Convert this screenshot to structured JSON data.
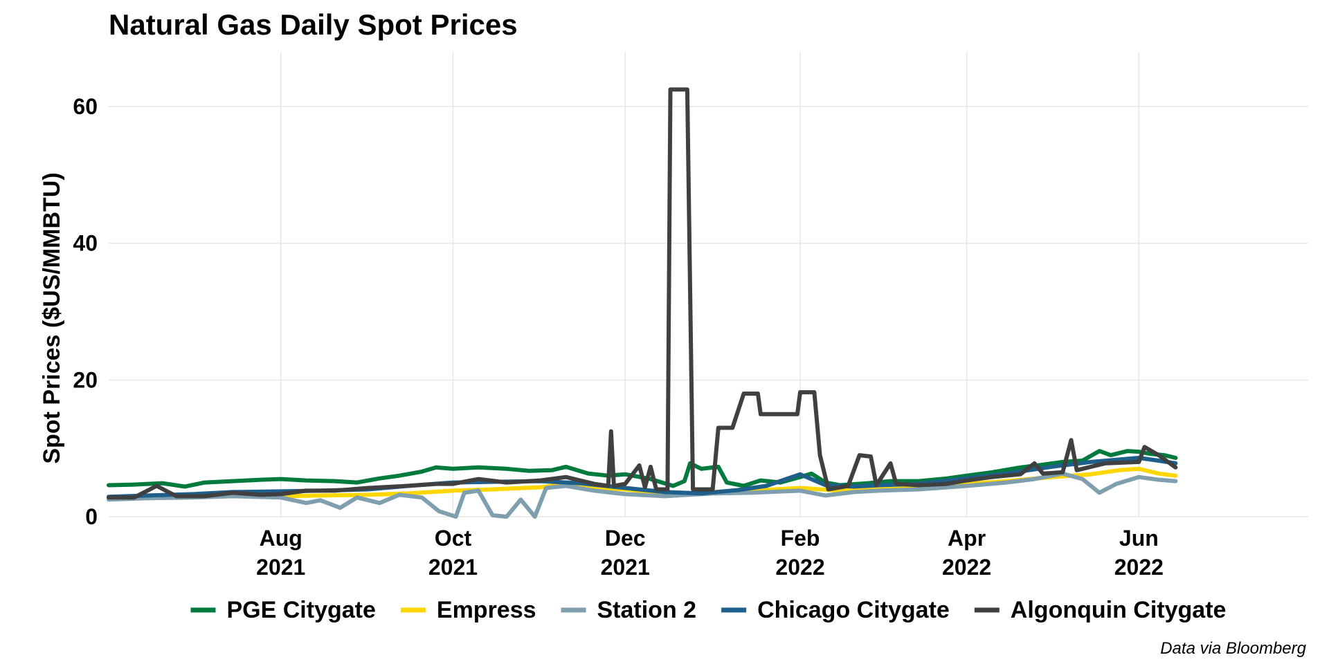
{
  "chart_data": {
    "type": "line",
    "title": "Natural Gas Daily Spot Prices",
    "ylabel": "Spot Prices ($US/MMBTU)",
    "xlabel": "",
    "caption": "Data via Bloomberg",
    "xlim": [
      "2021-06-01",
      "2022-07-31"
    ],
    "ylim": [
      0,
      68
    ],
    "yticks": [
      {
        "value": 0,
        "label": "0"
      },
      {
        "value": 20,
        "label": "20"
      },
      {
        "value": 40,
        "label": "40"
      },
      {
        "value": 60,
        "label": "60"
      }
    ],
    "xticks": [
      {
        "date": "2021-08-01",
        "month": "Aug",
        "year": "2021"
      },
      {
        "date": "2021-10-01",
        "month": "Oct",
        "year": "2021"
      },
      {
        "date": "2021-12-01",
        "month": "Dec",
        "year": "2021"
      },
      {
        "date": "2022-02-01",
        "month": "Feb",
        "year": "2022"
      },
      {
        "date": "2022-04-01",
        "month": "Apr",
        "year": "2022"
      },
      {
        "date": "2022-06-01",
        "month": "Jun",
        "year": "2022"
      }
    ],
    "grid": true,
    "legend_position": "bottom",
    "series": [
      {
        "name": "PGE Citygate",
        "color": "#007a3d",
        "points": [
          [
            "2021-06-01",
            4.6
          ],
          [
            "2021-06-10",
            4.7
          ],
          [
            "2021-06-20",
            4.9
          ],
          [
            "2021-06-28",
            4.4
          ],
          [
            "2021-07-05",
            5.0
          ],
          [
            "2021-07-15",
            5.2
          ],
          [
            "2021-07-25",
            5.4
          ],
          [
            "2021-08-01",
            5.5
          ],
          [
            "2021-08-10",
            5.3
          ],
          [
            "2021-08-20",
            5.2
          ],
          [
            "2021-08-28",
            5.0
          ],
          [
            "2021-09-05",
            5.6
          ],
          [
            "2021-09-12",
            6.0
          ],
          [
            "2021-09-20",
            6.6
          ],
          [
            "2021-09-25",
            7.2
          ],
          [
            "2021-10-01",
            7.0
          ],
          [
            "2021-10-10",
            7.2
          ],
          [
            "2021-10-20",
            7.0
          ],
          [
            "2021-10-28",
            6.7
          ],
          [
            "2021-11-05",
            6.8
          ],
          [
            "2021-11-10",
            7.3
          ],
          [
            "2021-11-18",
            6.3
          ],
          [
            "2021-11-25",
            6.0
          ],
          [
            "2021-12-01",
            6.2
          ],
          [
            "2021-12-10",
            5.5
          ],
          [
            "2021-12-18",
            4.5
          ],
          [
            "2021-12-22",
            5.2
          ],
          [
            "2021-12-24",
            7.8
          ],
          [
            "2021-12-28",
            7.0
          ],
          [
            "2022-01-03",
            7.3
          ],
          [
            "2022-01-06",
            5.0
          ],
          [
            "2022-01-12",
            4.5
          ],
          [
            "2022-01-18",
            5.3
          ],
          [
            "2022-01-25",
            5.0
          ],
          [
            "2022-02-01",
            5.8
          ],
          [
            "2022-02-05",
            6.3
          ],
          [
            "2022-02-10",
            5.0
          ],
          [
            "2022-02-15",
            4.6
          ],
          [
            "2022-02-25",
            4.9
          ],
          [
            "2022-03-05",
            5.2
          ],
          [
            "2022-03-15",
            5.2
          ],
          [
            "2022-03-25",
            5.6
          ],
          [
            "2022-04-01",
            6.0
          ],
          [
            "2022-04-10",
            6.5
          ],
          [
            "2022-04-20",
            7.2
          ],
          [
            "2022-04-28",
            7.6
          ],
          [
            "2022-05-05",
            8.0
          ],
          [
            "2022-05-12",
            8.2
          ],
          [
            "2022-05-18",
            9.6
          ],
          [
            "2022-05-22",
            9.0
          ],
          [
            "2022-05-28",
            9.6
          ],
          [
            "2022-06-01",
            9.5
          ],
          [
            "2022-06-05",
            9.2
          ],
          [
            "2022-06-10",
            9.0
          ],
          [
            "2022-06-14",
            8.6
          ]
        ]
      },
      {
        "name": "Empress",
        "color": "#ffd700",
        "points": [
          [
            "2021-06-01",
            2.6
          ],
          [
            "2021-06-15",
            2.7
          ],
          [
            "2021-07-01",
            2.9
          ],
          [
            "2021-07-15",
            3.0
          ],
          [
            "2021-08-01",
            3.0
          ],
          [
            "2021-08-15",
            3.1
          ],
          [
            "2021-09-01",
            3.2
          ],
          [
            "2021-09-15",
            3.4
          ],
          [
            "2021-10-01",
            3.8
          ],
          [
            "2021-10-15",
            4.0
          ],
          [
            "2021-11-01",
            4.3
          ],
          [
            "2021-11-10",
            4.8
          ],
          [
            "2021-11-20",
            4.2
          ],
          [
            "2021-12-01",
            4.0
          ],
          [
            "2021-12-10",
            3.6
          ],
          [
            "2021-12-20",
            3.3
          ],
          [
            "2022-01-01",
            3.6
          ],
          [
            "2022-01-15",
            3.8
          ],
          [
            "2022-02-01",
            4.2
          ],
          [
            "2022-02-15",
            3.8
          ],
          [
            "2022-03-01",
            4.0
          ],
          [
            "2022-03-15",
            4.2
          ],
          [
            "2022-04-01",
            4.8
          ],
          [
            "2022-04-15",
            5.2
          ],
          [
            "2022-05-01",
            5.8
          ],
          [
            "2022-05-15",
            6.2
          ],
          [
            "2022-05-25",
            6.8
          ],
          [
            "2022-06-01",
            7.0
          ],
          [
            "2022-06-08",
            6.3
          ],
          [
            "2022-06-14",
            6.0
          ]
        ]
      },
      {
        "name": "Station 2",
        "color": "#7f9faf",
        "points": [
          [
            "2021-06-01",
            2.5
          ],
          [
            "2021-06-15",
            2.7
          ],
          [
            "2021-07-01",
            2.8
          ],
          [
            "2021-07-15",
            3.0
          ],
          [
            "2021-08-01",
            2.8
          ],
          [
            "2021-08-10",
            2.0
          ],
          [
            "2021-08-15",
            2.4
          ],
          [
            "2021-08-22",
            1.3
          ],
          [
            "2021-08-28",
            2.8
          ],
          [
            "2021-09-05",
            2.0
          ],
          [
            "2021-09-12",
            3.2
          ],
          [
            "2021-09-20",
            2.8
          ],
          [
            "2021-09-26",
            0.8
          ],
          [
            "2021-10-02",
            0.0
          ],
          [
            "2021-10-05",
            3.5
          ],
          [
            "2021-10-10",
            3.8
          ],
          [
            "2021-10-15",
            0.2
          ],
          [
            "2021-10-20",
            0.0
          ],
          [
            "2021-10-25",
            2.5
          ],
          [
            "2021-10-30",
            0.0
          ],
          [
            "2021-11-03",
            4.2
          ],
          [
            "2021-11-10",
            4.5
          ],
          [
            "2021-11-20",
            3.8
          ],
          [
            "2021-12-01",
            3.3
          ],
          [
            "2021-12-15",
            3.0
          ],
          [
            "2022-01-01",
            3.4
          ],
          [
            "2022-01-15",
            3.5
          ],
          [
            "2022-02-01",
            3.8
          ],
          [
            "2022-02-10",
            3.1
          ],
          [
            "2022-02-20",
            3.6
          ],
          [
            "2022-03-01",
            3.8
          ],
          [
            "2022-03-15",
            4.0
          ],
          [
            "2022-04-01",
            4.5
          ],
          [
            "2022-04-15",
            5.0
          ],
          [
            "2022-04-25",
            5.5
          ],
          [
            "2022-05-05",
            6.3
          ],
          [
            "2022-05-12",
            5.5
          ],
          [
            "2022-05-18",
            3.5
          ],
          [
            "2022-05-24",
            4.8
          ],
          [
            "2022-06-01",
            5.8
          ],
          [
            "2022-06-08",
            5.4
          ],
          [
            "2022-06-14",
            5.2
          ]
        ]
      },
      {
        "name": "Chicago Citygate",
        "color": "#1f5f8b",
        "points": [
          [
            "2021-06-01",
            2.9
          ],
          [
            "2021-06-15",
            3.1
          ],
          [
            "2021-07-01",
            3.3
          ],
          [
            "2021-07-15",
            3.6
          ],
          [
            "2021-08-01",
            3.7
          ],
          [
            "2021-08-15",
            3.8
          ],
          [
            "2021-09-01",
            4.0
          ],
          [
            "2021-09-15",
            4.5
          ],
          [
            "2021-10-01",
            5.0
          ],
          [
            "2021-10-15",
            5.1
          ],
          [
            "2021-11-01",
            5.2
          ],
          [
            "2021-11-15",
            4.9
          ],
          [
            "2021-12-01",
            4.2
          ],
          [
            "2021-12-15",
            3.6
          ],
          [
            "2021-12-28",
            3.4
          ],
          [
            "2022-01-10",
            3.9
          ],
          [
            "2022-01-20",
            4.5
          ],
          [
            "2022-02-01",
            6.2
          ],
          [
            "2022-02-10",
            4.6
          ],
          [
            "2022-02-20",
            4.4
          ],
          [
            "2022-03-01",
            4.6
          ],
          [
            "2022-03-15",
            4.8
          ],
          [
            "2022-04-01",
            5.6
          ],
          [
            "2022-04-15",
            6.3
          ],
          [
            "2022-05-01",
            7.3
          ],
          [
            "2022-05-15",
            8.0
          ],
          [
            "2022-06-01",
            8.6
          ],
          [
            "2022-06-08",
            8.2
          ],
          [
            "2022-06-14",
            7.8
          ]
        ]
      },
      {
        "name": "Algonquin Citygate",
        "color": "#404040",
        "points": [
          [
            "2021-06-01",
            2.8
          ],
          [
            "2021-06-10",
            2.8
          ],
          [
            "2021-06-18",
            4.5
          ],
          [
            "2021-06-25",
            3.0
          ],
          [
            "2021-07-05",
            3.0
          ],
          [
            "2021-07-15",
            3.5
          ],
          [
            "2021-07-25",
            3.2
          ],
          [
            "2021-08-01",
            3.3
          ],
          [
            "2021-08-10",
            3.8
          ],
          [
            "2021-08-20",
            3.8
          ],
          [
            "2021-09-01",
            4.2
          ],
          [
            "2021-09-15",
            4.5
          ],
          [
            "2021-09-25",
            4.8
          ],
          [
            "2021-10-01",
            4.8
          ],
          [
            "2021-10-10",
            5.5
          ],
          [
            "2021-10-20",
            5.0
          ],
          [
            "2021-11-01",
            5.3
          ],
          [
            "2021-11-10",
            5.8
          ],
          [
            "2021-11-20",
            4.8
          ],
          [
            "2021-11-25",
            4.5
          ],
          [
            "2021-11-26",
            12.5
          ],
          [
            "2021-11-27",
            4.5
          ],
          [
            "2021-12-01",
            4.8
          ],
          [
            "2021-12-06",
            7.5
          ],
          [
            "2021-12-08",
            4.3
          ],
          [
            "2021-12-10",
            7.3
          ],
          [
            "2021-12-12",
            4.0
          ],
          [
            "2021-12-16",
            4.0
          ],
          [
            "2021-12-17",
            62.5
          ],
          [
            "2021-12-23",
            62.5
          ],
          [
            "2021-12-25",
            4.0
          ],
          [
            "2022-01-01",
            4.0
          ],
          [
            "2022-01-03",
            13.0
          ],
          [
            "2022-01-08",
            13.0
          ],
          [
            "2022-01-12",
            18.0
          ],
          [
            "2022-01-17",
            18.0
          ],
          [
            "2022-01-18",
            15.0
          ],
          [
            "2022-01-31",
            15.0
          ],
          [
            "2022-02-01",
            18.2
          ],
          [
            "2022-02-06",
            18.2
          ],
          [
            "2022-02-08",
            9.0
          ],
          [
            "2022-02-11",
            4.0
          ],
          [
            "2022-02-18",
            4.5
          ],
          [
            "2022-02-22",
            9.0
          ],
          [
            "2022-02-26",
            8.8
          ],
          [
            "2022-02-28",
            4.6
          ],
          [
            "2022-03-05",
            7.8
          ],
          [
            "2022-03-07",
            4.8
          ],
          [
            "2022-03-15",
            4.6
          ],
          [
            "2022-03-25",
            4.8
          ],
          [
            "2022-04-01",
            5.3
          ],
          [
            "2022-04-10",
            5.8
          ],
          [
            "2022-04-20",
            6.2
          ],
          [
            "2022-04-25",
            7.8
          ],
          [
            "2022-04-28",
            6.3
          ],
          [
            "2022-05-05",
            6.5
          ],
          [
            "2022-05-08",
            11.2
          ],
          [
            "2022-05-10",
            6.8
          ],
          [
            "2022-05-20",
            7.8
          ],
          [
            "2022-06-01",
            8.0
          ],
          [
            "2022-06-03",
            10.2
          ],
          [
            "2022-06-08",
            9.0
          ],
          [
            "2022-06-14",
            7.2
          ]
        ]
      }
    ]
  }
}
